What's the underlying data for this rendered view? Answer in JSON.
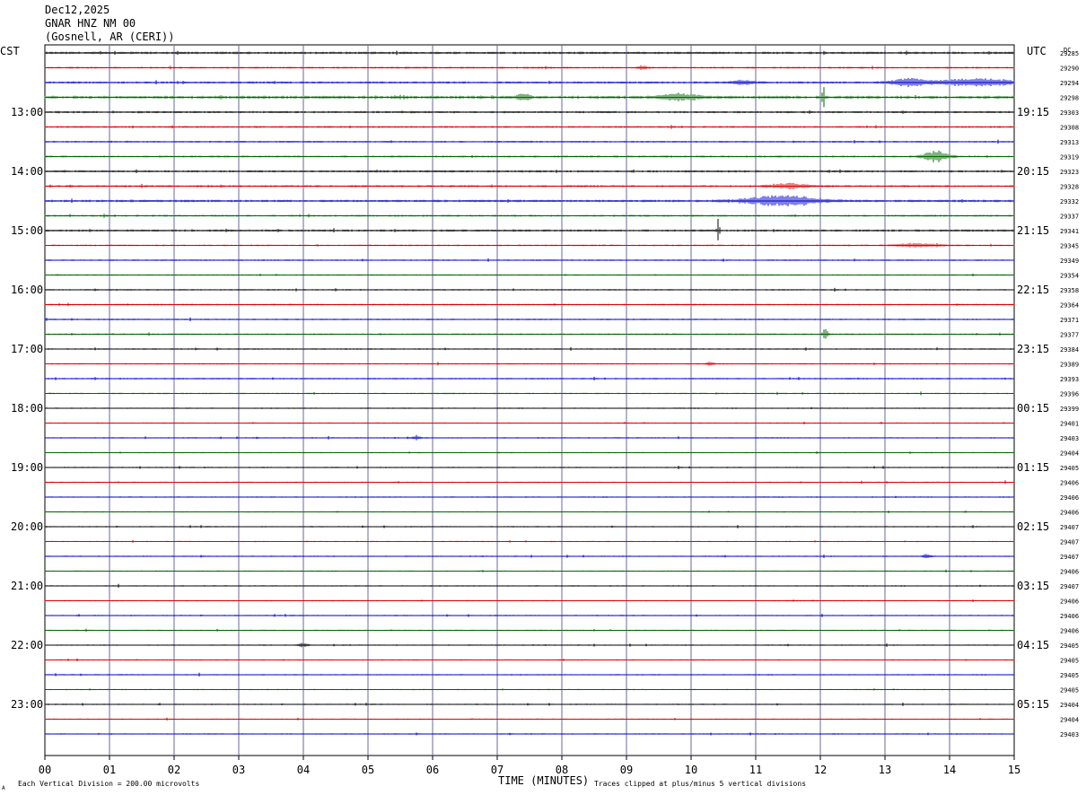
{
  "header": {
    "date": "Dec12,2025",
    "channel": "GNAR HNZ NM 00",
    "location": "(Gosnell, AR (CERI))"
  },
  "chart_data": {
    "type": "line",
    "title": "",
    "xlabel": "TIME (MINUTES)",
    "ylabel": "",
    "xlim": [
      0,
      15
    ],
    "x_ticks": [
      "00",
      "01",
      "02",
      "03",
      "04",
      "05",
      "06",
      "07",
      "08",
      "09",
      "10",
      "11",
      "12",
      "13",
      "14",
      "15"
    ],
    "left_axis_label": "CST",
    "right_axis_label": "UTC",
    "dc_label": "DC",
    "trace_colors": [
      "#000000",
      "#dd0000",
      "#0000cc",
      "#006600"
    ],
    "left_hour_labels": [
      {
        "row": 4,
        "text": "13:00"
      },
      {
        "row": 8,
        "text": "14:00"
      },
      {
        "row": 12,
        "text": "15:00"
      },
      {
        "row": 16,
        "text": "16:00"
      },
      {
        "row": 20,
        "text": "17:00"
      },
      {
        "row": 24,
        "text": "18:00"
      },
      {
        "row": 28,
        "text": "19:00"
      },
      {
        "row": 32,
        "text": "20:00"
      },
      {
        "row": 36,
        "text": "21:00"
      },
      {
        "row": 40,
        "text": "22:00"
      },
      {
        "row": 44,
        "text": "23:00"
      }
    ],
    "right_hour_labels": [
      {
        "row": 4,
        "text": "19:15"
      },
      {
        "row": 8,
        "text": "20:15"
      },
      {
        "row": 12,
        "text": "21:15"
      },
      {
        "row": 16,
        "text": "22:15"
      },
      {
        "row": 20,
        "text": "23:15"
      },
      {
        "row": 24,
        "text": "00:15"
      },
      {
        "row": 28,
        "text": "01:15"
      },
      {
        "row": 32,
        "text": "02:15"
      },
      {
        "row": 36,
        "text": "03:15"
      },
      {
        "row": 40,
        "text": "04:15"
      },
      {
        "row": 44,
        "text": "05:15"
      }
    ],
    "dc_values": [
      "29285",
      "29290",
      "29294",
      "29298",
      "29303",
      "29308",
      "29313",
      "29319",
      "29323",
      "29328",
      "29332",
      "29337",
      "29341",
      "29345",
      "29349",
      "29354",
      "29358",
      "29364",
      "29371",
      "29377",
      "29384",
      "29389",
      "29393",
      "29396",
      "29399",
      "29401",
      "29403",
      "29404",
      "29405",
      "29406",
      "29406",
      "29406",
      "29407",
      "29407",
      "29407",
      "29406",
      "29407",
      "29406",
      "29406",
      "29406",
      "29405",
      "29405",
      "29405",
      "29405",
      "29404",
      "29404",
      "29403"
    ],
    "noise_levels": [
      1.0,
      0.8,
      0.9,
      1.3,
      0.9,
      0.8,
      0.7,
      0.8,
      0.9,
      0.9,
      1.0,
      0.8,
      0.9,
      0.7,
      0.6,
      0.6,
      0.6,
      0.7,
      0.6,
      0.7,
      0.6,
      0.6,
      0.6,
      0.6,
      0.5,
      0.5,
      0.5,
      0.5,
      0.5,
      0.5,
      0.5,
      0.5,
      0.5,
      0.5,
      0.5,
      0.5,
      0.5,
      0.5,
      0.5,
      0.5,
      0.5,
      0.5,
      0.5,
      0.5,
      0.5,
      0.5,
      0.5
    ],
    "events": [
      {
        "row": 1,
        "x": 9.25,
        "amp": 2,
        "width": 0.1
      },
      {
        "row": 2,
        "x": 10.8,
        "amp": 2,
        "width": 0.3
      },
      {
        "row": 2,
        "x": 13.35,
        "amp": 4,
        "width": 0.4
      },
      {
        "row": 2,
        "x": 14.4,
        "amp": 4,
        "width": 1.0
      },
      {
        "row": 3,
        "x": 7.4,
        "amp": 4,
        "width": 0.15
      },
      {
        "row": 3,
        "x": 9.8,
        "amp": 4,
        "width": 0.4
      },
      {
        "row": 3,
        "x": 12.05,
        "amp": 12,
        "width": 0.03
      },
      {
        "row": 7,
        "x": 13.8,
        "amp": 6,
        "width": 0.3
      },
      {
        "row": 9,
        "x": 11.5,
        "amp": 3,
        "width": 0.4
      },
      {
        "row": 10,
        "x": 11.4,
        "amp": 6,
        "width": 0.8
      },
      {
        "row": 12,
        "x": 10.42,
        "amp": 14,
        "width": 0.03
      },
      {
        "row": 13,
        "x": 13.5,
        "amp": 2,
        "width": 0.5
      },
      {
        "row": 19,
        "x": 12.08,
        "amp": 10,
        "width": 0.05
      },
      {
        "row": 21,
        "x": 10.3,
        "amp": 2,
        "width": 0.1
      },
      {
        "row": 26,
        "x": 5.75,
        "amp": 3,
        "width": 0.08
      },
      {
        "row": 34,
        "x": 13.65,
        "amp": 3,
        "width": 0.08
      },
      {
        "row": 40,
        "x": 4.0,
        "amp": 3,
        "width": 0.1
      }
    ],
    "grid": true
  },
  "footer": {
    "scale_note": "Each Vertical Division =  200.00 microvolts",
    "clip_note": "Traces clipped at plus/minus 5 vertical divisions",
    "corner_mark": "A"
  }
}
